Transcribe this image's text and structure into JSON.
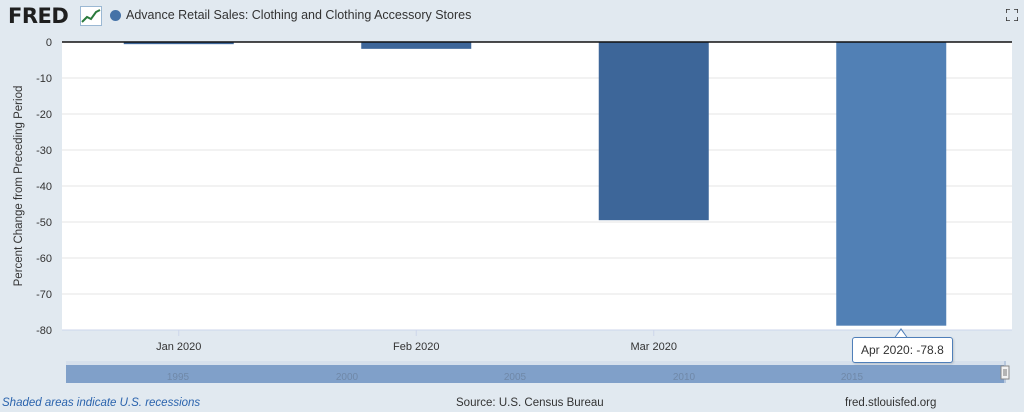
{
  "header": {
    "logo_text": "FRED",
    "title": "Advance Retail Sales: Clothing and Clothing Accessory Stores",
    "series_color": "#4572a7",
    "logo_icon": "fred-graph-icon",
    "fullscreen_icon": "fullscreen-icon"
  },
  "chart_data": {
    "type": "bar",
    "title": "Advance Retail Sales: Clothing and Clothing Accessory Stores",
    "ylabel": "Percent Change from Preceding Period",
    "xlabel": "",
    "categories": [
      "Jan 2020",
      "Feb 2020",
      "Mar 2020",
      "Apr 2020"
    ],
    "x_tick_labels": [
      "Jan 2020",
      "Feb 2020",
      "Mar 2020"
    ],
    "values": [
      -0.6,
      -1.9,
      -49.5,
      -78.8
    ],
    "highlight_index": 3,
    "ylim": [
      -80,
      0
    ],
    "yticks": [
      0,
      -10,
      -20,
      -30,
      -40,
      -50,
      -60,
      -70,
      -80
    ],
    "grid": true,
    "bar_color": "#3d6699",
    "highlight_color": "#5180b5",
    "navigator": {
      "labels": [
        "1995",
        "2000",
        "2005",
        "2010",
        "2015"
      ]
    }
  },
  "tooltip": {
    "label": "Apr 2020:",
    "value": "-78.8"
  },
  "footer": {
    "recession_note": "Shaded areas indicate U.S. recessions",
    "source": "Source: U.S. Census Bureau",
    "site": "fred.stlouisfed.org"
  }
}
